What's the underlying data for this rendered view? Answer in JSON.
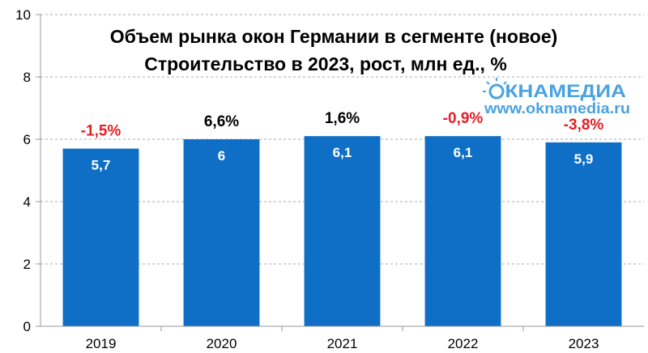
{
  "chart_data": {
    "type": "bar",
    "title_lines": [
      "Объем рынка окон Германии в сегменте (новое)",
      "Строительство в 2023, рост, млн ед., %"
    ],
    "categories": [
      "2019",
      "2020",
      "2021",
      "2022",
      "2023"
    ],
    "values": [
      5.7,
      6,
      6.1,
      6.1,
      5.9
    ],
    "value_labels": [
      "5,7",
      "6",
      "6,1",
      "6,1",
      "5,9"
    ],
    "growth_labels": [
      "-1,5%",
      "6,6%",
      "1,6%",
      "-0,9%",
      "-3,8%"
    ],
    "growth_colors": [
      "#e31e24",
      "#000000",
      "#000000",
      "#e31e24",
      "#e31e24"
    ],
    "ylim": [
      0,
      10
    ],
    "yticks": [
      0,
      2,
      4,
      6,
      8,
      10
    ],
    "grid": true,
    "bar_color": "#0f6fc6"
  },
  "watermark": {
    "brand": "ОКНАМЕДИА",
    "brand_first": "О",
    "brand_rest": "КНАМЕДИА",
    "url": "www.oknamedia.ru",
    "color": "#4aa3e0"
  }
}
